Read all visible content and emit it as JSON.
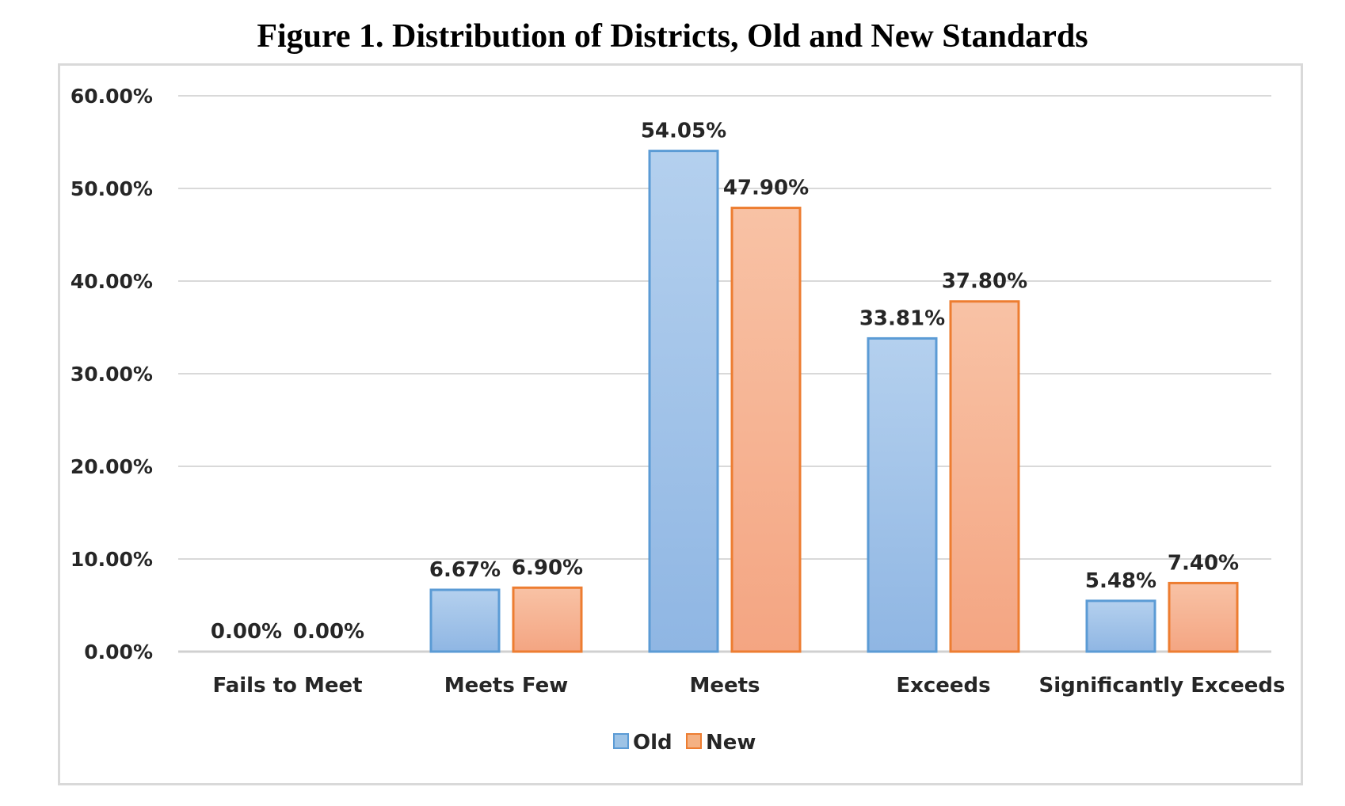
{
  "chart_data": {
    "type": "bar",
    "title": "Figure 1. Distribution of Districts, Old and New Standards",
    "xlabel": "",
    "ylabel": "",
    "categories": [
      "Fails to Meet",
      "Meets Few",
      "Meets",
      "Exceeds",
      "Significantly Exceeds"
    ],
    "series": [
      {
        "name": "Old",
        "values": [
          0.0,
          6.67,
          54.05,
          33.81,
          5.48
        ],
        "labels": [
          "0.00%",
          "6.67%",
          "54.05%",
          "33.81%",
          "5.48%"
        ],
        "color": "#9dc3e6",
        "stroke": "#5b9bd5"
      },
      {
        "name": "New",
        "values": [
          0.0,
          6.9,
          47.9,
          37.8,
          7.4
        ],
        "labels": [
          "0.00%",
          "6.90%",
          "47.90%",
          "37.80%",
          "7.40%"
        ],
        "color": "#f4b183",
        "stroke": "#ed7d31"
      }
    ],
    "ylim": [
      0,
      60
    ],
    "yticks": [
      "0.00%",
      "10.00%",
      "20.00%",
      "30.00%",
      "40.00%",
      "50.00%",
      "60.00%"
    ],
    "grid": true,
    "legend": "bottom"
  }
}
